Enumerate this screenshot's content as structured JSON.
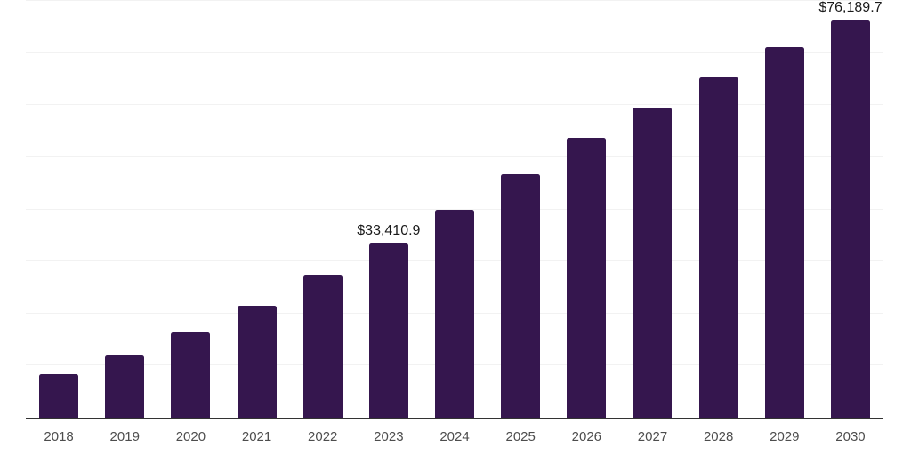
{
  "chart_data": {
    "type": "bar",
    "categories": [
      "2018",
      "2019",
      "2020",
      "2021",
      "2022",
      "2023",
      "2024",
      "2025",
      "2026",
      "2027",
      "2028",
      "2029",
      "2030"
    ],
    "values": [
      8400,
      11900,
      16400,
      21500,
      27300,
      33410.9,
      40000,
      46800,
      53800,
      59600,
      65300,
      71100,
      76189.7
    ],
    "bar_labels": [
      "",
      "",
      "",
      "",
      "",
      "$33,410.9",
      "",
      "",
      "",
      "",
      "",
      "",
      "$76,189.7"
    ],
    "title": "",
    "xlabel": "",
    "ylabel": "",
    "ylim": [
      0,
      80000
    ],
    "gridline_step": 10000,
    "grid": true,
    "legend": "none",
    "colors": {
      "bar": "#35164E",
      "axis_line": "#333333",
      "gridline": "#F2F2F2",
      "tick_label": "#4D4D4D",
      "data_label": "#1A1A1A",
      "background": "#FFFFFF"
    }
  }
}
